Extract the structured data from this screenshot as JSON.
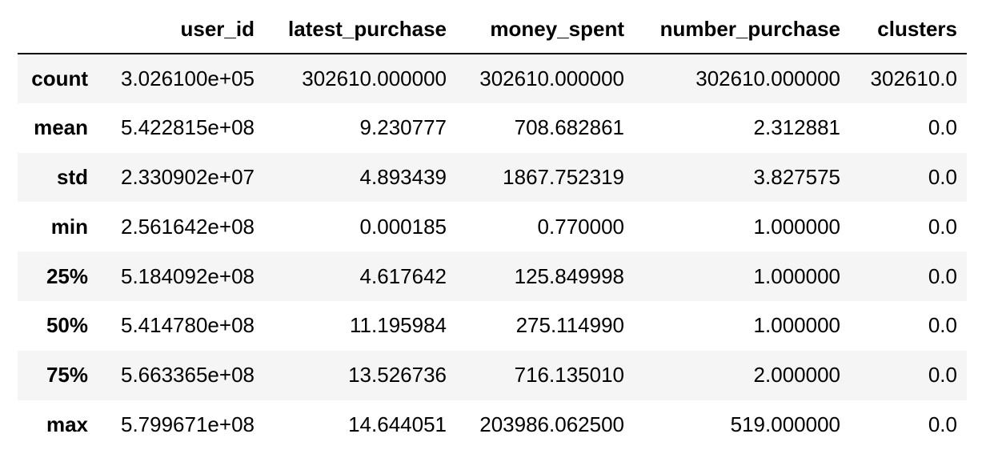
{
  "table": {
    "columns": [
      "",
      "user_id",
      "latest_purchase",
      "money_spent",
      "number_purchase",
      "clusters"
    ],
    "rows": [
      {
        "label": "count",
        "values": [
          "3.026100e+05",
          "302610.000000",
          "302610.000000",
          "302610.000000",
          "302610.0"
        ]
      },
      {
        "label": "mean",
        "values": [
          "5.422815e+08",
          "9.230777",
          "708.682861",
          "2.312881",
          "0.0"
        ]
      },
      {
        "label": "std",
        "values": [
          "2.330902e+07",
          "4.893439",
          "1867.752319",
          "3.827575",
          "0.0"
        ]
      },
      {
        "label": "min",
        "values": [
          "2.561642e+08",
          "0.000185",
          "0.770000",
          "1.000000",
          "0.0"
        ]
      },
      {
        "label": "25%",
        "values": [
          "5.184092e+08",
          "4.617642",
          "125.849998",
          "1.000000",
          "0.0"
        ]
      },
      {
        "label": "50%",
        "values": [
          "5.414780e+08",
          "11.195984",
          "275.114990",
          "1.000000",
          "0.0"
        ]
      },
      {
        "label": "75%",
        "values": [
          "5.663365e+08",
          "13.526736",
          "716.135010",
          "2.000000",
          "0.0"
        ]
      },
      {
        "label": "max",
        "values": [
          "5.799671e+08",
          "14.644051",
          "203986.062500",
          "519.000000",
          "0.0"
        ]
      }
    ]
  },
  "colors": {
    "stripe": "#f5f5f5",
    "rule": "#000000",
    "text": "#000000"
  }
}
